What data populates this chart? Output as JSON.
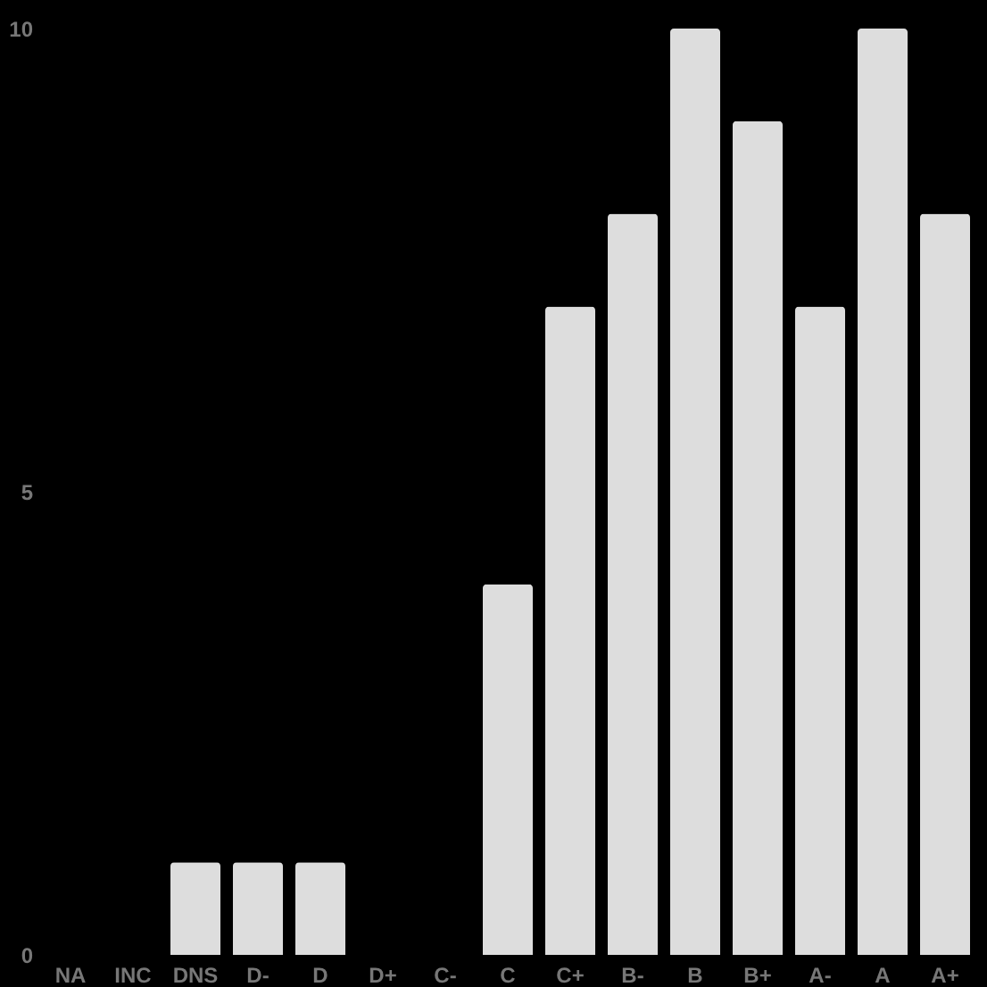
{
  "chart_data": {
    "type": "bar",
    "categories": [
      "NA",
      "INC",
      "DNS",
      "D-",
      "D",
      "D+",
      "C-",
      "C",
      "C+",
      "B-",
      "B",
      "B+",
      "A-",
      "A",
      "A+"
    ],
    "values": [
      0,
      0,
      1,
      1,
      1,
      0,
      0,
      4,
      7,
      8,
      10,
      9,
      7,
      10,
      8
    ],
    "color": "#dddddd",
    "ylim": [
      0,
      10
    ],
    "yticks": [
      0,
      5,
      10
    ]
  }
}
